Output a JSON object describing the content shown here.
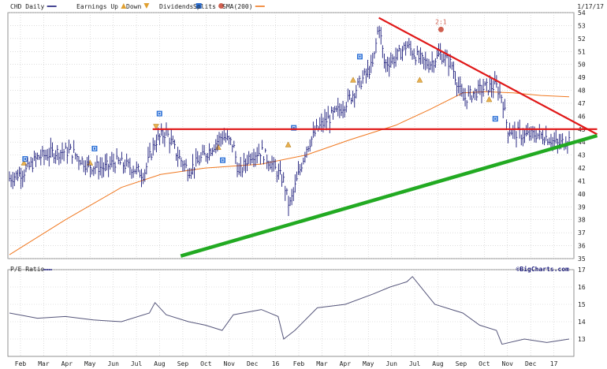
{
  "chart_data": [
    {
      "type": "ohlc",
      "legend": [
        {
          "label": "CHD Daily",
          "marker": "line",
          "color": "#1a1a7a"
        },
        {
          "label": "Earnings Up",
          "marker": "triangle-up",
          "color": "#e0a030"
        },
        {
          "label": "Down",
          "marker": "triangle-down",
          "color": "#e0a030"
        },
        {
          "label": "Dividends",
          "marker": "d-square",
          "color": "#2a6fd6"
        },
        {
          "label": "Splits",
          "marker": "split-circle",
          "color": "#d06050"
        },
        {
          "label": "SMA(200)",
          "marker": "line",
          "color": "#f07820"
        }
      ],
      "date": "1/17/17",
      "ylim": [
        35,
        54
      ],
      "yticks": [
        35,
        36,
        37,
        38,
        39,
        40,
        41,
        42,
        43,
        44,
        45,
        46,
        47,
        48,
        49,
        50,
        51,
        52,
        53,
        54
      ],
      "x_index_range": [
        0,
        100
      ],
      "price_path": [
        [
          0,
          41.2
        ],
        [
          3,
          41.8
        ],
        [
          5,
          42.8
        ],
        [
          8,
          43.2
        ],
        [
          11,
          43.3
        ],
        [
          14,
          42.2
        ],
        [
          17,
          42.0
        ],
        [
          19,
          42.5
        ],
        [
          22,
          42.0
        ],
        [
          24,
          41.5
        ],
        [
          26,
          44.0
        ],
        [
          28,
          44.8
        ],
        [
          30,
          43.0
        ],
        [
          32,
          41.8
        ],
        [
          34,
          42.6
        ],
        [
          36,
          43.5
        ],
        [
          38,
          44.5
        ],
        [
          40,
          43.8
        ],
        [
          41,
          41.5
        ],
        [
          43,
          43.0
        ],
        [
          45,
          43.3
        ],
        [
          47,
          42.2
        ],
        [
          49,
          41.0
        ],
        [
          50,
          39.0
        ],
        [
          51,
          40.5
        ],
        [
          53,
          43.5
        ],
        [
          55,
          45.0
        ],
        [
          57,
          45.8
        ],
        [
          59,
          46.5
        ],
        [
          61,
          47.5
        ],
        [
          63,
          48.8
        ],
        [
          65,
          50.0
        ],
        [
          66,
          53.2
        ],
        [
          67,
          50.0
        ],
        [
          69,
          50.5
        ],
        [
          71,
          51.5
        ],
        [
          73,
          50.5
        ],
        [
          75,
          50.0
        ],
        [
          77,
          50.8
        ],
        [
          79,
          50.0
        ],
        [
          81,
          47.3
        ],
        [
          83,
          47.8
        ],
        [
          85,
          48.2
        ],
        [
          87,
          48.3
        ],
        [
          88,
          47.5
        ],
        [
          89,
          45.0
        ],
        [
          90,
          44.8
        ],
        [
          92,
          44.5
        ],
        [
          94,
          44.6
        ],
        [
          96,
          44.4
        ],
        [
          98,
          43.8
        ],
        [
          100,
          44.2
        ]
      ],
      "sma_path": [
        [
          0,
          35.3
        ],
        [
          10,
          38.0
        ],
        [
          20,
          40.5
        ],
        [
          27,
          41.5
        ],
        [
          35,
          42.0
        ],
        [
          45,
          42.3
        ],
        [
          53,
          43.0
        ],
        [
          61,
          44.2
        ],
        [
          69,
          45.3
        ],
        [
          75,
          46.5
        ],
        [
          81,
          47.8
        ],
        [
          85,
          47.9
        ],
        [
          90,
          47.8
        ],
        [
          95,
          47.6
        ],
        [
          100,
          47.5
        ]
      ],
      "trendlines": [
        {
          "name": "resistance-horizontal",
          "color": "#e01818",
          "from": [
            25.6,
            45.0
          ],
          "to": [
            105,
            45.0
          ]
        },
        {
          "name": "resistance-descending",
          "color": "#e01818",
          "from": [
            66,
            53.6
          ],
          "to": [
            105,
            44.6
          ]
        },
        {
          "name": "support-ascending",
          "color": "#22aa22",
          "from": [
            30.6,
            35.2
          ],
          "to": [
            105,
            44.5
          ]
        }
      ],
      "events": [
        {
          "type": "earnings-up",
          "x": 2.6,
          "y": 42.4
        },
        {
          "type": "dividend",
          "x": 2.8,
          "y": 42.7
        },
        {
          "type": "dividend",
          "x": 15.2,
          "y": 43.5
        },
        {
          "type": "earnings-up",
          "x": 14.4,
          "y": 42.4
        },
        {
          "type": "dividend",
          "x": 26.8,
          "y": 46.2
        },
        {
          "type": "earnings-down",
          "x": 26.2,
          "y": 45.2
        },
        {
          "type": "earnings-up",
          "x": 37.3,
          "y": 43.6
        },
        {
          "type": "dividend",
          "x": 38.1,
          "y": 42.6
        },
        {
          "type": "earnings-up",
          "x": 49.8,
          "y": 43.8
        },
        {
          "type": "dividend",
          "x": 50.8,
          "y": 45.1
        },
        {
          "type": "earnings-up",
          "x": 61.4,
          "y": 48.8
        },
        {
          "type": "dividend",
          "x": 62.6,
          "y": 50.6
        },
        {
          "type": "earnings-up",
          "x": 73.3,
          "y": 48.8
        },
        {
          "type": "split",
          "x": 77.1,
          "y": 52.7
        },
        {
          "type": "dividend",
          "x": 86.8,
          "y": 45.8
        },
        {
          "type": "earnings-up",
          "x": 85.7,
          "y": 47.3
        }
      ],
      "split_label": "2:1"
    },
    {
      "type": "line",
      "series": [
        {
          "name": "P/E Ratio",
          "color": "#55557a"
        }
      ],
      "ylim": [
        12,
        17
      ],
      "yticks": [
        13,
        14,
        15,
        16,
        17
      ],
      "path": [
        [
          0,
          14.5
        ],
        [
          5,
          14.2
        ],
        [
          10,
          14.3
        ],
        [
          15,
          14.1
        ],
        [
          20,
          14.0
        ],
        [
          25,
          14.5
        ],
        [
          26,
          15.1
        ],
        [
          28,
          14.4
        ],
        [
          32,
          14.0
        ],
        [
          35,
          13.8
        ],
        [
          38,
          13.5
        ],
        [
          40,
          14.4
        ],
        [
          45,
          14.7
        ],
        [
          48,
          14.3
        ],
        [
          49,
          13.0
        ],
        [
          51,
          13.5
        ],
        [
          55,
          14.8
        ],
        [
          60,
          15.0
        ],
        [
          65,
          15.6
        ],
        [
          68,
          16.0
        ],
        [
          71,
          16.3
        ],
        [
          72,
          16.6
        ],
        [
          74,
          15.8
        ],
        [
          76,
          15.0
        ],
        [
          79,
          14.7
        ],
        [
          81,
          14.5
        ],
        [
          84,
          13.8
        ],
        [
          87,
          13.5
        ],
        [
          88,
          12.7
        ],
        [
          92,
          13.0
        ],
        [
          96,
          12.8
        ],
        [
          100,
          13.0
        ]
      ]
    }
  ],
  "x_axis": {
    "months": [
      "Feb",
      "Mar",
      "Apr",
      "May",
      "Jun",
      "Jul",
      "Aug",
      "Sep",
      "Oct",
      "Nov",
      "Dec",
      "16",
      "Feb",
      "Mar",
      "Apr",
      "May",
      "Jun",
      "Jul",
      "Aug",
      "Sep",
      "Oct",
      "Nov",
      "Dec",
      "17"
    ]
  },
  "lower_panel_title": "P/E Ratio",
  "watermark": "©BigCharts.com"
}
